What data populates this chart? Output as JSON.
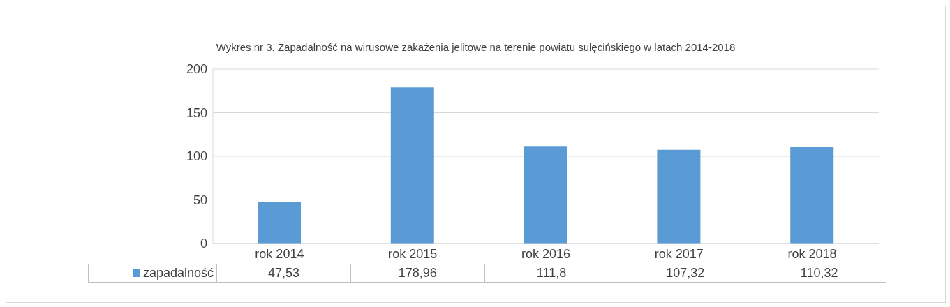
{
  "chart_data": {
    "type": "bar",
    "title": "Wykres nr 3. Zapadalność na wirusowe zakażenia jelitowe na terenie powiatu sulęcińskiego w latach 2014-2018",
    "categories": [
      "rok 2014",
      "rok 2015",
      "rok 2016",
      "rok 2017",
      "rok 2018"
    ],
    "series": [
      {
        "name": "zapadalność",
        "color": "#5b9bd5",
        "values": [
          47.53,
          178.96,
          111.8,
          107.32,
          110.32
        ],
        "value_labels": [
          "47,53",
          "178,96",
          "111,8",
          "107,32",
          "110,32"
        ]
      }
    ],
    "ylim": [
      0,
      200
    ],
    "yticks": [
      0,
      50,
      100,
      150,
      200
    ],
    "grid": "y",
    "legend": "bottom left"
  }
}
